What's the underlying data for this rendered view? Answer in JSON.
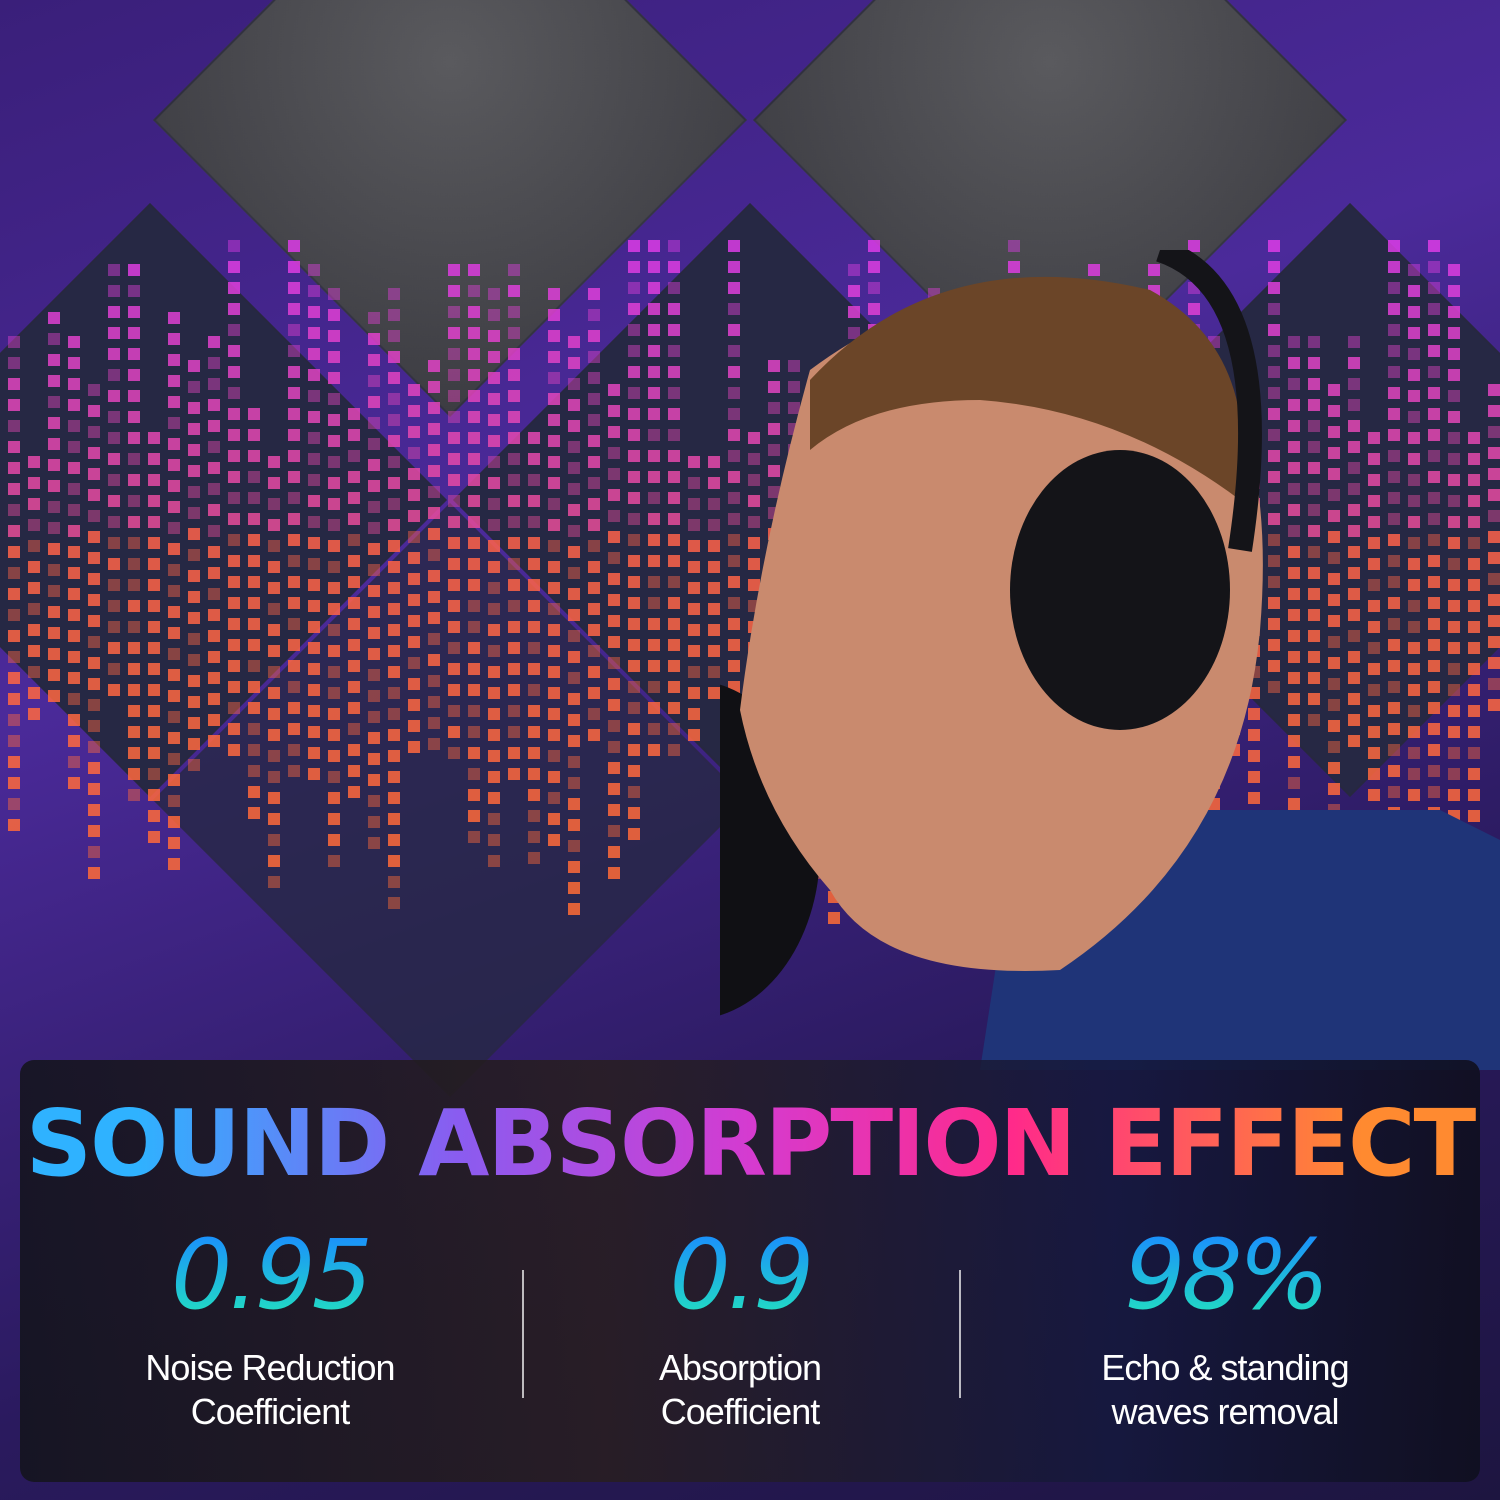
{
  "headline": "SOUND ABSORPTION EFFECT",
  "stats": [
    {
      "value": "0.95",
      "label_line1": "Noise Reduction",
      "label_line2": "Coefficient"
    },
    {
      "value": "0.9",
      "label_line1": "Absorption",
      "label_line2": "Coefficient"
    },
    {
      "value": "98%",
      "label_line1": "Echo & standing",
      "label_line2": "waves removal"
    }
  ],
  "colors": {
    "headline_gradient": [
      "#2fb2ff",
      "#8a5cf0",
      "#d53bd0",
      "#ff2a8a",
      "#ff8a30"
    ],
    "stat_gradient": [
      "#1a8cff",
      "#22e0c0"
    ],
    "background": "#3a1f7a"
  }
}
